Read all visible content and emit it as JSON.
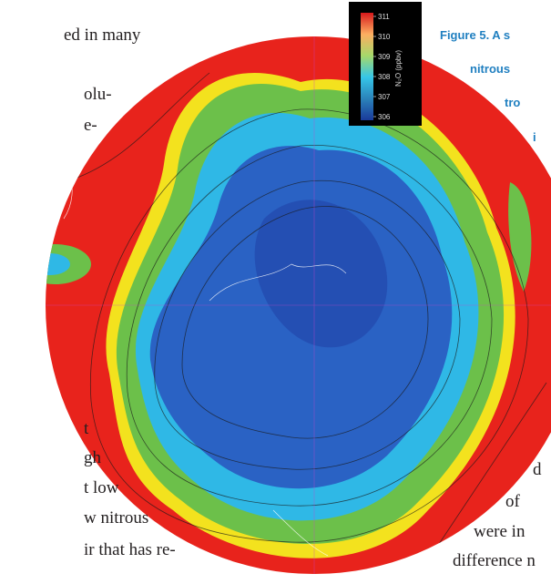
{
  "left_text": [
    "ed in many",
    "olu-",
    "e-",
    "t",
    "gh",
    "t low",
    "w nitrous",
    "ir that has re-"
  ],
  "right_text": [
    "d",
    "of",
    "were in",
    "difference n"
  ],
  "caption": [
    "Figure 5. A s",
    "nitrous",
    "tro",
    "i"
  ],
  "figure": {
    "colorbar_ticks": [
      "311",
      "310",
      "309",
      "308",
      "307",
      "306"
    ],
    "colorbar_label": "N₂O (ppbv)"
  }
}
